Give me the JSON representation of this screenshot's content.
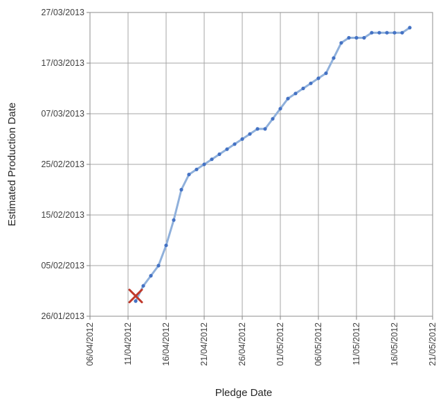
{
  "chart_data": {
    "type": "line",
    "xlabel": "Pledge Date",
    "ylabel": "Estimated Production Date",
    "x_ticks": [
      "06/04/2012",
      "11/04/2012",
      "16/04/2012",
      "21/04/2012",
      "26/04/2012",
      "01/05/2012",
      "06/05/2012",
      "11/05/2012",
      "16/05/2012",
      "21/05/2012"
    ],
    "y_ticks": [
      "26/01/2013",
      "05/02/2013",
      "15/02/2013",
      "25/02/2013",
      "07/03/2013",
      "17/03/2013",
      "27/03/2013"
    ],
    "xlim": [
      "06/04/2012",
      "21/05/2012"
    ],
    "ylim": [
      "26/01/2013",
      "27/03/2013"
    ],
    "grid": true,
    "series": [
      {
        "color": "#4472C4",
        "line_color": "#8FB0DB",
        "points": [
          [
            "12/04/2012",
            "29/01/2013"
          ],
          [
            "13/04/2012",
            "01/02/2013"
          ],
          [
            "14/04/2012",
            "03/02/2013"
          ],
          [
            "15/04/2012",
            "05/02/2013"
          ],
          [
            "16/04/2012",
            "09/02/2013"
          ],
          [
            "17/04/2012",
            "14/02/2013"
          ],
          [
            "18/04/2012",
            "20/02/2013"
          ],
          [
            "19/04/2012",
            "23/02/2013"
          ],
          [
            "20/04/2012",
            "24/02/2013"
          ],
          [
            "21/04/2012",
            "25/02/2013"
          ],
          [
            "22/04/2012",
            "26/02/2013"
          ],
          [
            "23/04/2012",
            "27/02/2013"
          ],
          [
            "24/04/2012",
            "28/02/2013"
          ],
          [
            "25/04/2012",
            "01/03/2013"
          ],
          [
            "26/04/2012",
            "02/03/2013"
          ],
          [
            "27/04/2012",
            "03/03/2013"
          ],
          [
            "28/04/2012",
            "04/03/2013"
          ],
          [
            "29/04/2012",
            "04/03/2013"
          ],
          [
            "30/04/2012",
            "06/03/2013"
          ],
          [
            "01/05/2012",
            "08/03/2013"
          ],
          [
            "02/05/2012",
            "10/03/2013"
          ],
          [
            "03/05/2012",
            "11/03/2013"
          ],
          [
            "04/05/2012",
            "12/03/2013"
          ],
          [
            "05/05/2012",
            "13/03/2013"
          ],
          [
            "06/05/2012",
            "14/03/2013"
          ],
          [
            "07/05/2012",
            "15/03/2013"
          ],
          [
            "08/05/2012",
            "18/03/2013"
          ],
          [
            "09/05/2012",
            "21/03/2013"
          ],
          [
            "10/05/2012",
            "22/03/2013"
          ],
          [
            "11/05/2012",
            "22/03/2013"
          ],
          [
            "12/05/2012",
            "22/03/2013"
          ],
          [
            "13/05/2012",
            "23/03/2013"
          ],
          [
            "14/05/2012",
            "23/03/2013"
          ],
          [
            "15/05/2012",
            "23/03/2013"
          ],
          [
            "16/05/2012",
            "23/03/2013"
          ],
          [
            "17/05/2012",
            "23/03/2013"
          ],
          [
            "18/05/2012",
            "24/03/2013"
          ]
        ]
      }
    ],
    "marker_x": {
      "x": "12/04/2012",
      "y": "30/01/2013",
      "color": "#C0392B"
    }
  }
}
